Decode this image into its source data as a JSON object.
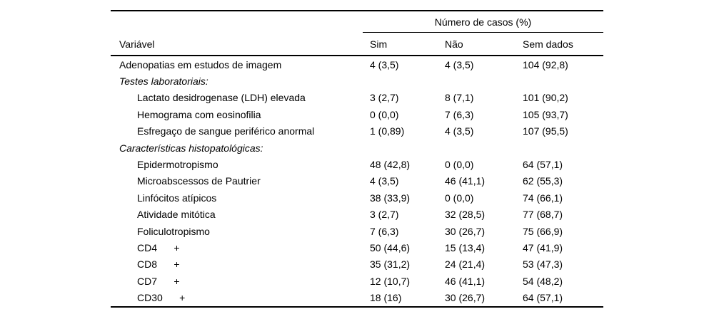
{
  "colors": {
    "background": "#ffffff",
    "text": "#000000",
    "rule": "#000000"
  },
  "chart_data": {
    "type": "table",
    "span_header": "Número de casos (%)",
    "columns": [
      "Variável",
      "Sim",
      "Não",
      "Sem dados"
    ],
    "rows": [
      {
        "type": "normal",
        "label": "Adenopatias em estudos de imagem",
        "sim": "4 (3,5)",
        "nao": "4 (3,5)",
        "sem_dados": "104 (92,8)"
      },
      {
        "type": "section",
        "label": "Testes laboratoriais:"
      },
      {
        "type": "indent",
        "label": "Lactato desidrogenase (LDH) elevada",
        "sim": "3 (2,7)",
        "nao": "8 (7,1)",
        "sem_dados": "101 (90,2)"
      },
      {
        "type": "indent",
        "label": "Hemograma com eosinofilia",
        "sim": "0 (0,0)",
        "nao": "7 (6,3)",
        "sem_dados": "105 (93,7)"
      },
      {
        "type": "indent",
        "label": "Esfregaço de sangue periférico anormal",
        "sim": "1 (0,89)",
        "nao": "4 (3,5)",
        "sem_dados": "107 (95,5)"
      },
      {
        "type": "section",
        "label": "Características histopatológicas:"
      },
      {
        "type": "indent",
        "label": "Epidermotropismo",
        "sim": "48 (42,8)",
        "nao": "0 (0,0)",
        "sem_dados": "64 (57,1)"
      },
      {
        "type": "indent",
        "label": "Microabscessos de Pautrier",
        "sim": "4 (3,5)",
        "nao": "46 (41,1)",
        "sem_dados": "62 (55,3)"
      },
      {
        "type": "indent",
        "label": "Linfócitos atípicos",
        "sim": "38 (33,9)",
        "nao": "0 (0,0)",
        "sem_dados": "74 (66,1)"
      },
      {
        "type": "indent",
        "label": "Atividade mitótica",
        "sim": "3 (2,7)",
        "nao": "32 (28,5)",
        "sem_dados": "77 (68,7)"
      },
      {
        "type": "indent",
        "label": "Foliculotropismo",
        "sim": "7 (6,3)",
        "nao": "30 (26,7)",
        "sem_dados": "75 (66,9)"
      },
      {
        "type": "indent",
        "label": "CD4      +",
        "sim": "50 (44,6)",
        "nao": "15 (13,4)",
        "sem_dados": "47 (41,9)"
      },
      {
        "type": "indent",
        "label": "CD8      +",
        "sim": "35 (31,2)",
        "nao": "24 (21,4)",
        "sem_dados": "53 (47,3)"
      },
      {
        "type": "indent",
        "label": "CD7      +",
        "sim": "12 (10,7)",
        "nao": "46 (41,1)",
        "sem_dados": "54 (48,2)"
      },
      {
        "type": "indent",
        "label": "CD30      +",
        "sim": "18 (16)",
        "nao": "30 (26,7)",
        "sem_dados": "64 (57,1)"
      }
    ]
  }
}
